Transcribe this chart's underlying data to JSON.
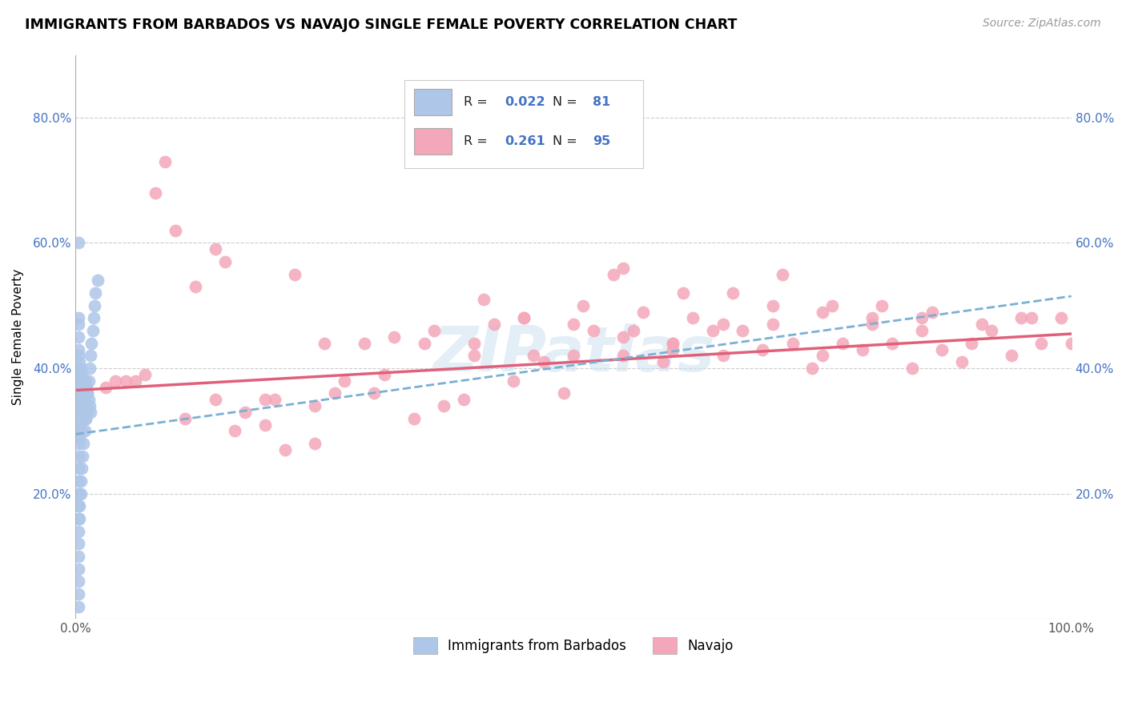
{
  "title": "IMMIGRANTS FROM BARBADOS VS NAVAJO SINGLE FEMALE POVERTY CORRELATION CHART",
  "source": "Source: ZipAtlas.com",
  "ylabel": "Single Female Poverty",
  "xlim": [
    0,
    1.0
  ],
  "ylim": [
    0,
    0.9
  ],
  "x_ticks": [
    0.0,
    0.2,
    0.4,
    0.6,
    0.8,
    1.0
  ],
  "x_tick_labels": [
    "0.0%",
    "",
    "",
    "",
    "",
    "100.0%"
  ],
  "y_ticks": [
    0.2,
    0.4,
    0.6,
    0.8
  ],
  "y_tick_labels": [
    "20.0%",
    "40.0%",
    "60.0%",
    "80.0%"
  ],
  "blue_color": "#aec6e8",
  "pink_color": "#f4a7b9",
  "blue_line_color": "#7ab0d4",
  "pink_line_color": "#e0607a",
  "R_color": "#4472c4",
  "legend_labels": [
    "Immigrants from Barbados",
    "Navajo"
  ],
  "R_blue": "0.022",
  "N_blue": "81",
  "R_pink": "0.261",
  "N_pink": "95",
  "watermark": "ZIPatlas",
  "blue_scatter_x": [
    0.002,
    0.003,
    0.003,
    0.003,
    0.003,
    0.003,
    0.003,
    0.003,
    0.003,
    0.003,
    0.003,
    0.003,
    0.003,
    0.003,
    0.003,
    0.003,
    0.003,
    0.004,
    0.004,
    0.004,
    0.004,
    0.004,
    0.004,
    0.004,
    0.005,
    0.005,
    0.005,
    0.005,
    0.005,
    0.006,
    0.006,
    0.006,
    0.006,
    0.007,
    0.007,
    0.007,
    0.008,
    0.008,
    0.008,
    0.009,
    0.009,
    0.01,
    0.01,
    0.01,
    0.011,
    0.011,
    0.012,
    0.013,
    0.014,
    0.015,
    0.003,
    0.003,
    0.003,
    0.003,
    0.003,
    0.003,
    0.003,
    0.003,
    0.003,
    0.004,
    0.004,
    0.004,
    0.005,
    0.005,
    0.006,
    0.007,
    0.008,
    0.009,
    0.01,
    0.011,
    0.012,
    0.013,
    0.014,
    0.015,
    0.016,
    0.017,
    0.018,
    0.019,
    0.02,
    0.022,
    0.003
  ],
  "blue_scatter_y": [
    0.38,
    0.6,
    0.47,
    0.45,
    0.43,
    0.42,
    0.4,
    0.38,
    0.36,
    0.34,
    0.32,
    0.3,
    0.28,
    0.26,
    0.24,
    0.22,
    0.2,
    0.41,
    0.39,
    0.37,
    0.35,
    0.33,
    0.31,
    0.29,
    0.4,
    0.38,
    0.36,
    0.34,
    0.3,
    0.39,
    0.37,
    0.35,
    0.33,
    0.38,
    0.36,
    0.34,
    0.37,
    0.35,
    0.33,
    0.36,
    0.34,
    0.38,
    0.36,
    0.32,
    0.37,
    0.33,
    0.36,
    0.35,
    0.34,
    0.33,
    0.18,
    0.16,
    0.14,
    0.12,
    0.1,
    0.08,
    0.06,
    0.04,
    0.02,
    0.2,
    0.18,
    0.16,
    0.22,
    0.2,
    0.24,
    0.26,
    0.28,
    0.3,
    0.32,
    0.34,
    0.36,
    0.38,
    0.4,
    0.42,
    0.44,
    0.46,
    0.48,
    0.5,
    0.52,
    0.54,
    0.48
  ],
  "pink_scatter_x": [
    0.03,
    0.05,
    0.07,
    0.08,
    0.1,
    0.12,
    0.14,
    0.15,
    0.17,
    0.19,
    0.2,
    0.22,
    0.24,
    0.25,
    0.27,
    0.29,
    0.3,
    0.32,
    0.34,
    0.35,
    0.37,
    0.39,
    0.4,
    0.42,
    0.44,
    0.45,
    0.47,
    0.49,
    0.5,
    0.52,
    0.54,
    0.55,
    0.57,
    0.59,
    0.6,
    0.62,
    0.64,
    0.65,
    0.67,
    0.69,
    0.7,
    0.72,
    0.74,
    0.75,
    0.77,
    0.79,
    0.8,
    0.82,
    0.84,
    0.85,
    0.87,
    0.89,
    0.9,
    0.92,
    0.94,
    0.95,
    0.97,
    0.99,
    1.0,
    0.06,
    0.11,
    0.16,
    0.21,
    0.26,
    0.31,
    0.36,
    0.41,
    0.46,
    0.51,
    0.56,
    0.61,
    0.66,
    0.71,
    0.76,
    0.81,
    0.86,
    0.91,
    0.96,
    0.04,
    0.09,
    0.14,
    0.19,
    0.24,
    0.55,
    0.6,
    0.65,
    0.7,
    0.75,
    0.8,
    0.85,
    0.4,
    0.45,
    0.5,
    0.55,
    0.6
  ],
  "pink_scatter_y": [
    0.37,
    0.38,
    0.39,
    0.68,
    0.62,
    0.53,
    0.35,
    0.57,
    0.33,
    0.35,
    0.35,
    0.55,
    0.34,
    0.44,
    0.38,
    0.44,
    0.36,
    0.45,
    0.32,
    0.44,
    0.34,
    0.35,
    0.44,
    0.47,
    0.38,
    0.48,
    0.41,
    0.36,
    0.42,
    0.46,
    0.55,
    0.42,
    0.49,
    0.41,
    0.44,
    0.48,
    0.46,
    0.47,
    0.46,
    0.43,
    0.5,
    0.44,
    0.4,
    0.49,
    0.44,
    0.43,
    0.47,
    0.44,
    0.4,
    0.48,
    0.43,
    0.41,
    0.44,
    0.46,
    0.42,
    0.48,
    0.44,
    0.48,
    0.44,
    0.38,
    0.32,
    0.3,
    0.27,
    0.36,
    0.39,
    0.46,
    0.51,
    0.42,
    0.5,
    0.46,
    0.52,
    0.52,
    0.55,
    0.5,
    0.5,
    0.49,
    0.47,
    0.48,
    0.38,
    0.73,
    0.59,
    0.31,
    0.28,
    0.56,
    0.43,
    0.42,
    0.47,
    0.42,
    0.48,
    0.46,
    0.42,
    0.48,
    0.47,
    0.45,
    0.44
  ]
}
